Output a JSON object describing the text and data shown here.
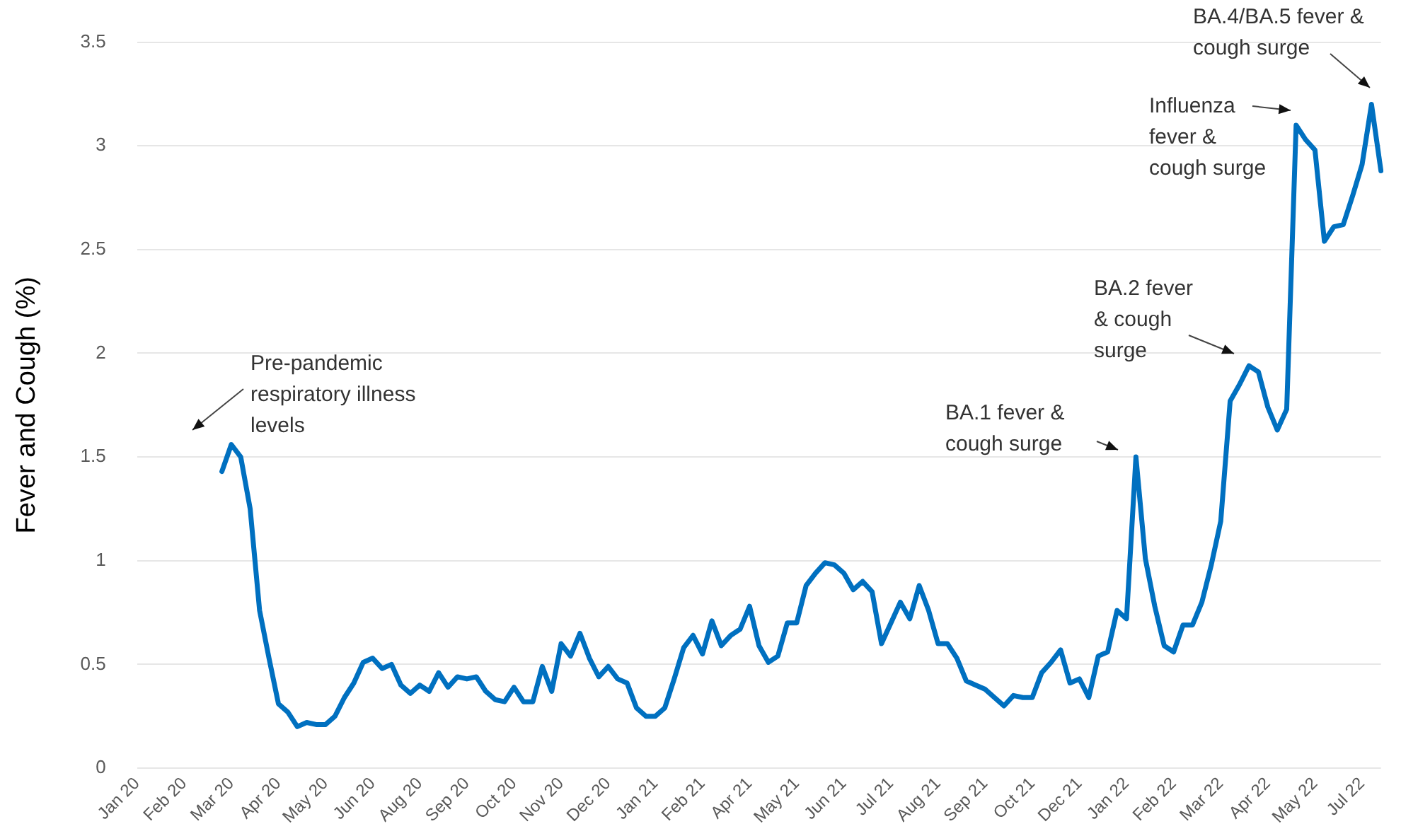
{
  "chart_data": {
    "type": "line",
    "ylabel": "Fever and Cough (%)",
    "categories": [
      "Jan 20",
      null,
      null,
      null,
      null,
      "Feb 20",
      null,
      null,
      null,
      null,
      "Mar 20",
      null,
      null,
      null,
      null,
      "Apr 20",
      null,
      null,
      null,
      null,
      "May 20",
      null,
      null,
      null,
      null,
      "Jun 20",
      null,
      null,
      null,
      null,
      "Aug 20",
      null,
      null,
      null,
      null,
      "Sep 20",
      null,
      null,
      null,
      null,
      "Oct 20",
      null,
      null,
      null,
      null,
      "Nov 20",
      null,
      null,
      null,
      null,
      "Dec 20",
      null,
      null,
      null,
      null,
      "Jan 21",
      null,
      null,
      null,
      null,
      "Feb 21",
      null,
      null,
      null,
      null,
      "Apr 21",
      null,
      null,
      null,
      null,
      "May 21",
      null,
      null,
      null,
      null,
      "Jun 21",
      null,
      null,
      null,
      null,
      "Jul 21",
      null,
      null,
      null,
      null,
      "Aug 21",
      null,
      null,
      null,
      null,
      "Sep 21",
      null,
      null,
      null,
      null,
      "Oct 21",
      null,
      null,
      null,
      null,
      "Dec 21",
      null,
      null,
      null,
      null,
      "Jan 22",
      null,
      null,
      null,
      null,
      "Feb 22",
      null,
      null,
      null,
      null,
      "Mar 22",
      null,
      null,
      null,
      null,
      "Apr 22",
      null,
      null,
      null,
      null,
      "May 22",
      null,
      null,
      null,
      null,
      "Jul 22",
      null,
      null
    ],
    "series": [
      {
        "color": "#0070c0",
        "values": [
          null,
          null,
          null,
          null,
          null,
          null,
          null,
          null,
          null,
          1.43,
          1.56,
          1.5,
          1.25,
          0.76,
          0.53,
          0.31,
          0.27,
          0.2,
          0.22,
          0.21,
          0.21,
          0.25,
          0.34,
          0.41,
          0.51,
          0.53,
          0.48,
          0.5,
          0.4,
          0.36,
          0.4,
          0.37,
          0.46,
          0.39,
          0.44,
          0.43,
          0.44,
          0.37,
          0.33,
          0.32,
          0.39,
          0.32,
          0.32,
          0.49,
          0.37,
          0.6,
          0.54,
          0.65,
          0.53,
          0.44,
          0.49,
          0.43,
          0.41,
          0.29,
          0.25,
          0.25,
          0.29,
          0.43,
          0.58,
          0.64,
          0.55,
          0.71,
          0.59,
          0.64,
          0.67,
          0.78,
          0.59,
          0.51,
          0.54,
          0.7,
          0.7,
          0.88,
          0.94,
          0.99,
          0.98,
          0.94,
          0.86,
          0.9,
          0.85,
          0.6,
          0.7,
          0.8,
          0.72,
          0.88,
          0.76,
          0.6,
          0.6,
          0.53,
          0.42,
          0.4,
          0.38,
          0.34,
          0.3,
          0.35,
          0.34,
          0.34,
          0.46,
          0.51,
          0.57,
          0.41,
          0.43,
          0.34,
          0.54,
          0.56,
          0.76,
          0.72,
          1.5,
          1.01,
          0.78,
          0.59,
          0.56,
          0.69,
          0.69,
          0.8,
          0.98,
          1.19,
          1.77,
          1.85,
          1.94,
          1.91,
          1.74,
          1.63,
          1.73,
          3.1,
          3.03,
          2.98,
          2.54,
          2.61,
          2.62,
          2.76,
          2.91,
          3.2,
          2.88
        ]
      }
    ],
    "ylim": [
      0,
      3.5
    ],
    "yticks": [
      0,
      0.5,
      1,
      1.5,
      2,
      2.5,
      3,
      3.5
    ],
    "grid": "y",
    "legend": false,
    "marker": "none",
    "line_style": "solid",
    "annotations": [
      "Pre-pandemic respiratory illness levels",
      "BA.1 fever & cough surge",
      "BA.2 fever & cough surge",
      "Influenza fever & cough surge",
      "BA.4/BA.5 fever & cough surge"
    ]
  }
}
